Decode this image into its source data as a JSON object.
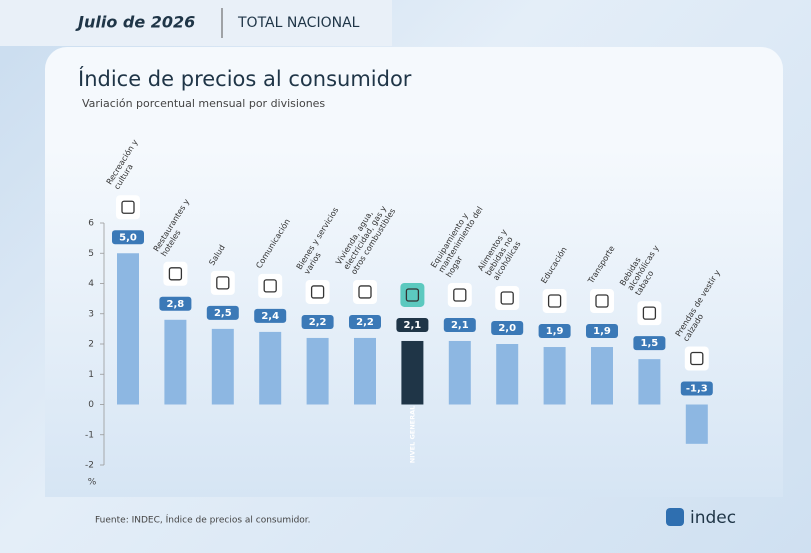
{
  "header": {
    "period": "Julio de 2026",
    "scope": "TOTAL NACIONAL"
  },
  "chart_data": {
    "type": "bar",
    "title": "Índice de precios al consumidor",
    "subtitle": "Variación porcentual mensual por divisiones",
    "categories": [
      "Recreación y cultura",
      "Restaurantes y hoteles",
      "Salud",
      "Comunicación",
      "Bienes y servicios varios",
      "Vivienda, agua, electricidad, gas y otros combustibles",
      "NIVEL GENERAL",
      "Equipamiento y mantenimiento del hogar",
      "Alimentos y bebidas no alcohólicas",
      "Educación",
      "Transporte",
      "Bebidas alcohólicas y tabaco",
      "Prendas de vestir y calzado"
    ],
    "values": [
      5.0,
      2.8,
      2.5,
      2.4,
      2.2,
      2.2,
      2.1,
      2.1,
      2.0,
      1.9,
      1.9,
      1.5,
      -1.3
    ],
    "value_labels": [
      "5,0",
      "2,8",
      "2,5",
      "2,4",
      "2,2",
      "2,2",
      "2,1",
      "2,1",
      "2,0",
      "1,9",
      "1,9",
      "1,5",
      "-1,3"
    ],
    "color": "#8db7e2",
    "colors": [
      "#8db7e2",
      "#8db7e2",
      "#8db7e2",
      "#8db7e2",
      "#8db7e2",
      "#8db7e2",
      "#1f3547",
      "#8db7e2",
      "#8db7e2",
      "#8db7e2",
      "#8db7e2",
      "#8db7e2",
      "#8db7e2"
    ],
    "ylim": [
      -2,
      6
    ],
    "yticks": [
      -2,
      -1,
      0,
      1,
      2,
      3,
      4,
      5,
      6
    ],
    "ylabel": "%"
  },
  "footer": {
    "source": "Fuente: INDEC, Índice de precios al consumidor.",
    "logo": "indec"
  }
}
